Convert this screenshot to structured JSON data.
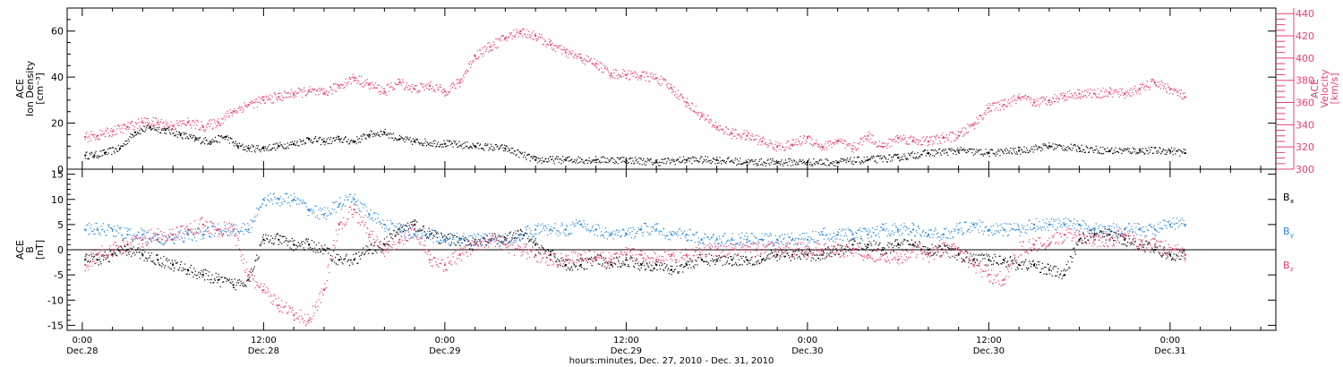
{
  "chart_data": [
    {
      "type": "scatter",
      "panel": "top",
      "ylabel": [
        "ACE",
        "Ion Density",
        "[cm⁻³]"
      ],
      "ylabel_right": [
        "ACE",
        "Velocity",
        "[km/s]"
      ],
      "ylim": [
        0,
        70
      ],
      "yticks": [
        "0",
        "20",
        "40",
        "60"
      ],
      "ylim_right": [
        300,
        445
      ],
      "yticks_right": [
        "300",
        "320",
        "340",
        "360",
        "380",
        "400",
        "420",
        "440"
      ],
      "series": [
        {
          "axis": "left",
          "color": "#000000",
          "x": [
            0.2,
            0.8,
            1.5,
            2.5,
            3.5,
            4.5,
            5.5,
            6.5,
            7.5,
            8.5,
            9.5,
            10.3,
            11,
            12,
            13,
            14,
            15,
            16,
            17,
            18,
            19,
            20,
            21,
            22,
            24,
            26,
            28,
            30,
            32,
            34,
            36,
            38,
            40,
            42,
            44,
            46,
            48,
            50,
            52,
            54,
            56,
            58,
            60,
            62,
            64,
            66,
            68,
            70,
            72,
            73
          ],
          "y": [
            6,
            6,
            7,
            9,
            16,
            18,
            17,
            15,
            13,
            12,
            14,
            10,
            9,
            9,
            10,
            11,
            13,
            12,
            13,
            12,
            15,
            16,
            13,
            12,
            11,
            10,
            9,
            4,
            4,
            4,
            4,
            3,
            4,
            4,
            3,
            3,
            3,
            3,
            4,
            5,
            7,
            8,
            7,
            8,
            10,
            9,
            8,
            8,
            8,
            7
          ]
        },
        {
          "axis": "right",
          "color": "#e8406e",
          "x": [
            0.2,
            1,
            2,
            3,
            4,
            5,
            6,
            7,
            8,
            9,
            10,
            11,
            12,
            13,
            14,
            15,
            16,
            17,
            18,
            19,
            20,
            21,
            22,
            23,
            24,
            25,
            26,
            27,
            28,
            29,
            30,
            31,
            32,
            33,
            34,
            35,
            36,
            37,
            38,
            39,
            40,
            41,
            42,
            43,
            44,
            45,
            46,
            47,
            48,
            49,
            50,
            51,
            52,
            53,
            54,
            55,
            56,
            57,
            58,
            59,
            60,
            61,
            62,
            63,
            64,
            65,
            66,
            67,
            68,
            69,
            70,
            71,
            72,
            73
          ],
          "y": [
            329,
            330,
            334,
            338,
            342,
            342,
            339,
            342,
            338,
            342,
            352,
            358,
            362,
            365,
            368,
            370,
            368,
            375,
            382,
            376,
            370,
            378,
            372,
            375,
            370,
            378,
            402,
            410,
            418,
            424,
            420,
            412,
            405,
            400,
            395,
            386,
            385,
            384,
            382,
            373,
            360,
            348,
            338,
            332,
            330,
            325,
            320,
            322,
            328,
            320,
            325,
            318,
            330,
            320,
            328,
            326,
            325,
            328,
            330,
            340,
            355,
            358,
            364,
            360,
            362,
            366,
            368,
            368,
            369,
            368,
            372,
            378,
            372,
            365
          ]
        }
      ]
    },
    {
      "type": "scatter",
      "panel": "bottom",
      "ylabel": [
        "ACE",
        "B",
        "[nT]"
      ],
      "ylim": [
        -16,
        16
      ],
      "yticks": [
        "-15",
        "-10",
        "-5",
        "0",
        "5",
        "10",
        "15"
      ],
      "legend": [
        "B",
        "B",
        "B"
      ],
      "legend_subscripts": [
        "x",
        "y",
        "z"
      ],
      "legend_placement": "right",
      "series": [
        {
          "name": "Bx",
          "color": "#000000",
          "x": [
            0.2,
            1,
            2,
            3,
            4,
            5,
            6,
            7,
            8,
            9,
            10,
            11,
            12,
            13,
            14,
            15,
            16,
            17,
            18,
            19,
            20,
            21,
            22,
            23,
            24,
            25,
            26,
            27,
            28,
            29,
            30,
            31,
            32,
            33,
            34,
            35,
            36,
            37,
            38,
            39,
            40,
            41,
            42,
            43,
            44,
            45,
            46,
            47,
            48,
            49,
            50,
            51,
            52,
            53,
            54,
            55,
            56,
            57,
            58,
            59,
            60,
            61,
            62,
            63,
            64,
            65,
            66,
            67,
            68,
            69,
            70,
            71,
            72,
            73
          ],
          "y": [
            -2,
            -2,
            -1,
            0,
            -1,
            -2,
            -3,
            -4,
            -5,
            -6,
            -7,
            -6,
            2,
            2,
            1,
            1,
            0,
            -2,
            -2,
            0,
            1,
            4,
            5,
            3,
            2,
            2,
            1,
            2,
            2,
            3,
            1,
            -1,
            -3,
            -3,
            -2,
            -3,
            -2,
            -3,
            -3,
            -4,
            -3,
            -2,
            -2,
            -2,
            -2,
            -2,
            -1,
            -1,
            -1,
            -1,
            0,
            1,
            1,
            0,
            1,
            1,
            0,
            0,
            -1,
            -2,
            -2,
            -2,
            -3,
            -3,
            -4,
            -5,
            2,
            3,
            3,
            2,
            1,
            0,
            -1,
            -1
          ]
        },
        {
          "name": "By",
          "color": "#2a8ad9",
          "x": [
            0.2,
            1,
            2,
            3,
            4,
            5,
            6,
            7,
            8,
            9,
            10,
            11,
            12,
            13,
            14,
            15,
            16,
            17,
            18,
            19,
            20,
            21,
            22,
            23,
            24,
            25,
            26,
            27,
            28,
            29,
            30,
            31,
            32,
            33,
            34,
            35,
            36,
            37,
            38,
            39,
            40,
            41,
            42,
            43,
            44,
            45,
            46,
            47,
            48,
            49,
            50,
            51,
            52,
            53,
            54,
            55,
            56,
            57,
            58,
            59,
            60,
            61,
            62,
            63,
            64,
            65,
            66,
            67,
            68,
            69,
            70,
            71,
            72,
            73
          ],
          "y": [
            4,
            4,
            4,
            3,
            3,
            2,
            2,
            3,
            3,
            4,
            4,
            4,
            10,
            10,
            10,
            8,
            7,
            9,
            10,
            7,
            5,
            4,
            3,
            3,
            2,
            2,
            2,
            2,
            2,
            3,
            4,
            4,
            4,
            5,
            4,
            3,
            3,
            4,
            4,
            3,
            3,
            2,
            2,
            2,
            2,
            2,
            2,
            2,
            2,
            3,
            3,
            3,
            3,
            4,
            4,
            4,
            3,
            3,
            4,
            5,
            4,
            4,
            4,
            5,
            5,
            5,
            5,
            4,
            4,
            4,
            4,
            4,
            5,
            5
          ]
        },
        {
          "name": "Bz",
          "color": "#e8406e",
          "x": [
            0.2,
            1,
            2,
            3,
            4,
            5,
            6,
            7,
            8,
            9,
            10,
            11,
            12,
            13,
            14,
            15,
            16,
            17,
            18,
            19,
            20,
            21,
            22,
            23,
            24,
            25,
            26,
            27,
            28,
            29,
            30,
            31,
            32,
            33,
            34,
            35,
            36,
            37,
            38,
            39,
            40,
            41,
            42,
            43,
            44,
            45,
            46,
            47,
            48,
            49,
            50,
            51,
            52,
            53,
            54,
            55,
            56,
            57,
            58,
            59,
            60,
            61,
            62,
            63,
            64,
            65,
            66,
            67,
            68,
            69,
            70,
            71,
            72,
            73
          ],
          "y": [
            -3,
            -1,
            0,
            1,
            2,
            3,
            3,
            4,
            5,
            4,
            4,
            -5,
            -8,
            -11,
            -13,
            -14,
            -8,
            5,
            8,
            3,
            0,
            2,
            4,
            -2,
            -3,
            -1,
            1,
            2,
            1,
            0,
            -1,
            -2,
            -2,
            -1,
            -2,
            -2,
            -1,
            -1,
            -2,
            -1,
            -1,
            0,
            0,
            0,
            0,
            0,
            0,
            0,
            0,
            0,
            0,
            0,
            -1,
            -1,
            -2,
            0,
            -1,
            0,
            0,
            -3,
            -5,
            -6,
            0,
            1,
            1,
            3,
            3,
            2,
            2,
            3,
            1,
            1,
            0,
            -1
          ]
        }
      ]
    }
  ],
  "xaxis": {
    "label": "hours:minutes, Dec. 27, 2010 - Dec. 31, 2010",
    "ticks": [
      {
        "time": "0:00",
        "date": "Dec.28",
        "hour": 0
      },
      {
        "time": "12:00",
        "date": "Dec.28",
        "hour": 12
      },
      {
        "time": "0:00",
        "date": "Dec.29",
        "hour": 24
      },
      {
        "time": "12:00",
        "date": "Dec.29",
        "hour": 36
      },
      {
        "time": "0:00",
        "date": "Dec.30",
        "hour": 48
      },
      {
        "time": "12:00",
        "date": "Dec.30",
        "hour": 60
      },
      {
        "time": "0:00",
        "date": "Dec.31",
        "hour": 72
      }
    ],
    "xlim": [
      -1,
      79
    ]
  }
}
